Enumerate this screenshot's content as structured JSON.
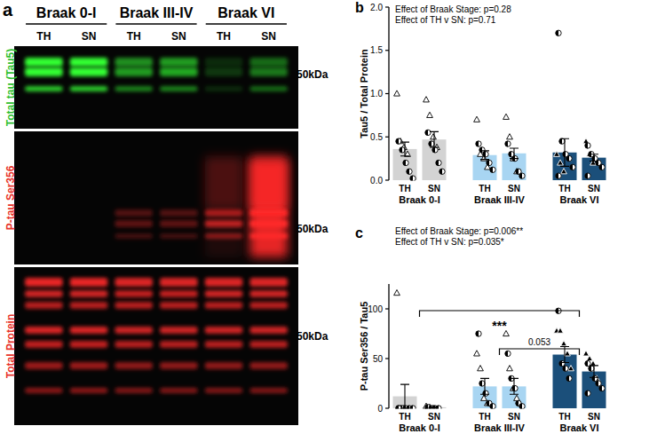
{
  "blot": {
    "label": "a",
    "groups": [
      "Braak 0-I",
      "Braak III-IV",
      "Braak VI"
    ],
    "lanes": [
      "TH",
      "SN",
      "TH",
      "SN",
      "TH",
      "SN"
    ],
    "rows": [
      {
        "label": "Total tau (Tau5)",
        "color": "#2fbf2f",
        "size_marker": "50kDa"
      },
      {
        "label": "P-tau Ser356",
        "color": "#e8332a",
        "size_marker": "50kDa"
      },
      {
        "label": "Total Protein",
        "color": "#e8332a",
        "size_marker": "50kDa"
      }
    ]
  },
  "chart_data": [
    {
      "type": "bar",
      "panel": "b",
      "y_label": "Tau5 / Total Protein",
      "annotations": [
        "Effect of Braak Stage: p=0.28",
        "Effect of TH v SN: p=0.71"
      ],
      "categories": [
        "TH",
        "SN",
        "TH",
        "SN",
        "TH",
        "SN"
      ],
      "groups": [
        "Braak 0-I",
        "Braak III-IV",
        "Braak VI"
      ],
      "values": [
        0.36,
        0.47,
        0.29,
        0.31,
        0.32,
        0.26
      ],
      "errors": [
        0.08,
        0.09,
        0.05,
        0.06,
        0.16,
        0.04
      ],
      "colors": [
        "#d3d3d3",
        "#d3d3d3",
        "#a8d5f2",
        "#a8d5f2",
        "#1b4f7a",
        "#1b4f7a"
      ],
      "ylim": [
        0,
        2
      ],
      "yticks": [
        {
          "value": 0,
          "label": "0.0"
        },
        {
          "value": 0.5,
          "label": "0.5"
        },
        {
          "value": 1,
          "label": "1.0"
        },
        {
          "value": 1.5,
          "label": "1.5"
        },
        {
          "value": 2,
          "label": "2.0"
        }
      ],
      "points": [
        {
          "marker": "triangle",
          "values": [
            [
              1.0,
              0.45,
              0.38,
              0.3
            ],
            [
              0.93,
              0.75,
              0.5,
              0.38
            ],
            [
              0.7,
              0.3,
              0.25,
              0.15
            ],
            [
              0.73,
              0.5,
              0.25,
              0.1
            ],
            [
              0.3,
              0.2,
              0.1
            ],
            [
              0.45,
              0.3,
              0.2
            ]
          ]
        },
        {
          "marker": "circle",
          "values": [
            [
              0.45,
              0.35,
              0.2,
              0.1,
              0.02
            ],
            [
              0.55,
              0.42,
              0.35,
              0.2,
              0.1
            ],
            [
              0.42,
              0.35,
              0.3,
              0.2,
              0.12
            ],
            [
              0.42,
              0.3,
              0.25,
              0.1,
              0.05
            ],
            [
              1.7,
              0.45,
              0.3,
              0.25,
              0.15,
              0.05
            ],
            [
              0.4,
              0.3,
              0.25,
              0.2,
              0.15,
              0.05
            ]
          ]
        }
      ]
    },
    {
      "type": "bar",
      "panel": "c",
      "y_label": "P-tau Ser356 / Tau5",
      "annotations": [
        "Effect of Braak Stage: p=0.006**",
        "Effect of TH v  SN: p=0.035*"
      ],
      "categories": [
        "TH",
        "SN",
        "TH",
        "SN",
        "TH",
        "SN"
      ],
      "groups": [
        "Braak 0-I",
        "Braak III-IV",
        "Braak VI"
      ],
      "values": [
        12,
        1,
        22,
        22,
        54,
        37
      ],
      "errors": [
        12,
        0.5,
        8,
        8,
        8,
        6
      ],
      "colors": [
        "#d3d3d3",
        "#d3d3d3",
        "#a8d5f2",
        "#a8d5f2",
        "#1b4f7a",
        "#1b4f7a"
      ],
      "ylim": [
        0,
        125
      ],
      "yticks": [
        0,
        50,
        100
      ],
      "brackets": [
        {
          "label": "***",
          "from": "Braak 0-I",
          "to": "Braak VI"
        },
        {
          "label": "0.053",
          "from": "Braak III-IV",
          "to": "Braak VI"
        }
      ],
      "points": [
        {
          "marker": "triangle",
          "values": [
            [
              116,
              0,
              0
            ],
            [
              2,
              1,
              0
            ],
            [
              55,
              40,
              10,
              5
            ],
            [
              75,
              40,
              20,
              10
            ],
            [
              78,
              78,
              65,
              55,
              40
            ],
            [
              55,
              50,
              45,
              30
            ]
          ]
        },
        {
          "marker": "circle",
          "values": [
            [
              0,
              0,
              0,
              0,
              0,
              0
            ],
            [
              1,
              0,
              0,
              0
            ],
            [
              75,
              25,
              15,
              5,
              2
            ],
            [
              55,
              30,
              20,
              5,
              2
            ],
            [
              98,
              45,
              40,
              30
            ],
            [
              45,
              40,
              30,
              25,
              20,
              15
            ]
          ]
        }
      ]
    }
  ]
}
